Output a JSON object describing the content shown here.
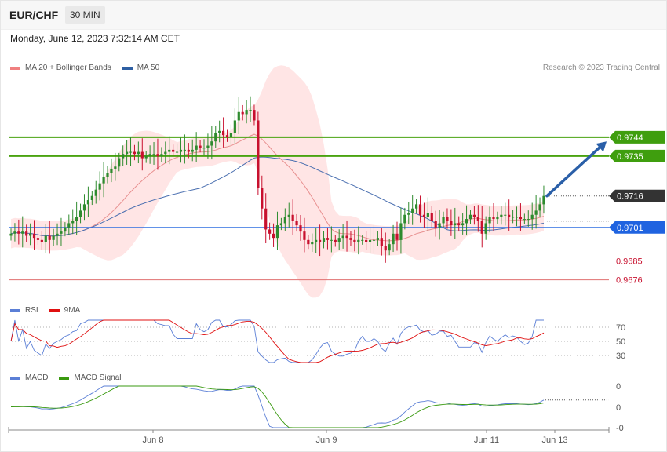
{
  "header": {
    "symbol": "EUR/CHF",
    "timeframe": "30 MIN",
    "datetime": "Monday, June 12, 2023 7:32:14 AM CET"
  },
  "legends": {
    "main": [
      {
        "label": "MA 20 + Bollinger Bands",
        "color": "#f08080"
      },
      {
        "label": "MA 50",
        "color": "#2e5fa3"
      }
    ],
    "rsi": [
      {
        "label": "RSI",
        "color": "#5b7fd6"
      },
      {
        "label": "9MA",
        "color": "#e01010"
      }
    ],
    "macd": [
      {
        "label": "MACD",
        "color": "#5b7fd6"
      },
      {
        "label": "MACD Signal",
        "color": "#3a9a10"
      }
    ]
  },
  "credit": "Research © 2023 Trading Central",
  "colors": {
    "up_candle": "#2e8b2e",
    "down_candle": "#c8102e",
    "band_fill": "#ffe0e0",
    "target_line": "#4aa310",
    "pivot_line": "#2f6fe0",
    "support_line": "#e07070",
    "arrow": "#2a5fa8"
  },
  "chart_data": [
    {
      "type": "candlestick",
      "panel": "price",
      "title": "",
      "ylim": [
        0.9668,
        0.9772
      ],
      "x_ticks": [
        "Jun 8",
        "Jun 9",
        "Jun 11",
        "Jun 13"
      ],
      "levels": [
        {
          "value": 0.9744,
          "label": "0.9744",
          "style": "target"
        },
        {
          "value": 0.9735,
          "label": "0.9735",
          "style": "target"
        },
        {
          "value": 0.9716,
          "label": "0.9716",
          "style": "last"
        },
        {
          "value": 0.9701,
          "label": "0.9701",
          "style": "pivot"
        },
        {
          "value": 0.9685,
          "label": "0.9685",
          "style": "support"
        },
        {
          "value": 0.9676,
          "label": "0.9676",
          "style": "support"
        }
      ],
      "last_price": 0.9716,
      "target_arrow": {
        "from": 0.9716,
        "to": 0.9742
      },
      "close": [
        0.9698,
        0.9699,
        0.9698,
        0.9699,
        0.9697,
        0.9698,
        0.9696,
        0.9695,
        0.9694,
        0.9697,
        0.9695,
        0.9697,
        0.9698,
        0.9699,
        0.9701,
        0.9703,
        0.9704,
        0.9706,
        0.9709,
        0.9712,
        0.9714,
        0.9716,
        0.9719,
        0.9722,
        0.9725,
        0.9727,
        0.9729,
        0.973,
        0.9734,
        0.9736,
        0.9737,
        0.9737,
        0.9736,
        0.9737,
        0.9734,
        0.9735,
        0.9736,
        0.9736,
        0.9735,
        0.9736,
        0.9737,
        0.9738,
        0.9737,
        0.9737,
        0.9738,
        0.9738,
        0.9737,
        0.9738,
        0.974,
        0.9739,
        0.9739,
        0.974,
        0.9742,
        0.9746,
        0.9747,
        0.9745,
        0.9744,
        0.9746,
        0.9752,
        0.9756,
        0.9755,
        0.9757,
        0.9757,
        0.9752,
        0.972,
        0.971,
        0.97,
        0.9698,
        0.9696,
        0.9702,
        0.9703,
        0.9706,
        0.9707,
        0.9704,
        0.9702,
        0.9699,
        0.9695,
        0.9693,
        0.9694,
        0.9695,
        0.9694,
        0.9696,
        0.9695,
        0.9695,
        0.9694,
        0.9696,
        0.9697,
        0.9696,
        0.9695,
        0.9694,
        0.9695,
        0.9695,
        0.9694,
        0.9695,
        0.9695,
        0.9696,
        0.9692,
        0.969,
        0.9693,
        0.9698,
        0.9695,
        0.9703,
        0.9707,
        0.9708,
        0.971,
        0.9712,
        0.9707,
        0.9706,
        0.9708,
        0.9704,
        0.9701,
        0.9703,
        0.9706,
        0.9704,
        0.9702,
        0.9703,
        0.9702,
        0.9703,
        0.9705,
        0.9707,
        0.9706,
        0.9704,
        0.9698,
        0.9703,
        0.9706,
        0.9705,
        0.9706,
        0.9707,
        0.9707,
        0.9706,
        0.9706,
        0.9706,
        0.9705,
        0.9705,
        0.9705,
        0.9707,
        0.9709,
        0.9712,
        0.9716
      ]
    },
    {
      "type": "line",
      "panel": "rsi",
      "title": "",
      "ylim": [
        20,
        80
      ],
      "y_ticks": [
        70,
        50,
        30
      ],
      "series": [
        {
          "name": "RSI"
        },
        {
          "name": "9MA"
        }
      ]
    },
    {
      "type": "line",
      "panel": "macd",
      "title": "",
      "ylim": [
        -0.0006,
        0.0006
      ],
      "y_ticks": [
        "0",
        "0",
        "-0"
      ],
      "series": [
        {
          "name": "MACD"
        },
        {
          "name": "MACD Signal"
        }
      ]
    }
  ]
}
